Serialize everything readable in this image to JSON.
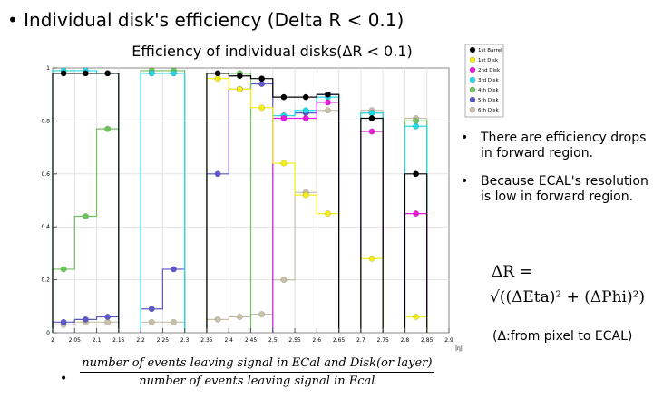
{
  "slide": {
    "title": "• Individual disk's efficiency (Delta R < 0.1)"
  },
  "notes": [
    {
      "bullet": "•",
      "text": "There are efficiency drops in forward region."
    },
    {
      "bullet": "•",
      "text": "Because ECAL's resolution is low in forward region."
    }
  ],
  "formula": {
    "lhs": "ΔR =",
    "rhs": "√((ΔEta)² + (ΔPhi)²)"
  },
  "caption": "(Δ:from pixel to ECAL)",
  "fraction": {
    "bullet": "•",
    "numerator": "number of events leaving signal in ECal and Disk(or layer)",
    "denominator": "number of events leaving signal in Ecal"
  },
  "colors": {
    "1st Barrel": "#000000",
    "1st Disk": "#f3ee1c",
    "2nd Disk": "#ea1bdc",
    "3rd Disk": "#22d9e6",
    "4th Disk": "#6cc45a",
    "5th Disk": "#5d58c6",
    "6th Disk": "#c7c1aa"
  },
  "chart_data": {
    "type": "step",
    "title": "Efficiency of individual disks(ΔR < 0.1)",
    "xlabel": "|η|",
    "ylabel": "",
    "xlim": [
      2.0,
      2.9
    ],
    "ylim": [
      0,
      1.0
    ],
    "xticks": [
      "2",
      "2.05",
      "2.1",
      "2.15",
      "2.2",
      "2.25",
      "2.3",
      "2.35",
      "2.4",
      "2.45",
      "2.5",
      "2.55",
      "2.6",
      "2.65",
      "2.7",
      "2.75",
      "2.8",
      "2.85",
      "2.9"
    ],
    "xtick_values": [
      2.0,
      2.05,
      2.1,
      2.15,
      2.2,
      2.25,
      2.3,
      2.35,
      2.4,
      2.45,
      2.5,
      2.55,
      2.6,
      2.65,
      2.7,
      2.75,
      2.8,
      2.85,
      2.9
    ],
    "yticks": [
      "0",
      "0.2",
      "0.4",
      "0.6",
      "0.8",
      "1"
    ],
    "ytick_values": [
      0,
      0.2,
      0.4,
      0.6,
      0.8,
      1.0
    ],
    "bin_width": 0.05,
    "legend_position": "top-right",
    "series": [
      {
        "name": "1st Barrel",
        "bins": [
          {
            "x": 2.025,
            "y": 0.98
          },
          {
            "x": 2.075,
            "y": 0.98
          },
          {
            "x": 2.125,
            "y": 0.98
          },
          {
            "x": 2.375,
            "y": 0.98
          },
          {
            "x": 2.425,
            "y": 0.97
          },
          {
            "x": 2.475,
            "y": 0.96
          },
          {
            "x": 2.525,
            "y": 0.89
          },
          {
            "x": 2.575,
            "y": 0.89
          },
          {
            "x": 2.625,
            "y": 0.9
          },
          {
            "x": 2.725,
            "y": 0.81
          },
          {
            "x": 2.825,
            "y": 0.6
          }
        ]
      },
      {
        "name": "1st Disk",
        "bins": [
          {
            "x": 2.375,
            "y": 0.96
          },
          {
            "x": 2.425,
            "y": 0.92
          },
          {
            "x": 2.475,
            "y": 0.85
          },
          {
            "x": 2.525,
            "y": 0.64
          },
          {
            "x": 2.575,
            "y": 0.52
          },
          {
            "x": 2.625,
            "y": 0.45
          },
          {
            "x": 2.725,
            "y": 0.28
          },
          {
            "x": 2.825,
            "y": 0.06
          }
        ]
      },
      {
        "name": "2nd Disk",
        "bins": [
          {
            "x": 2.525,
            "y": 0.81
          },
          {
            "x": 2.575,
            "y": 0.81
          },
          {
            "x": 2.625,
            "y": 0.87
          },
          {
            "x": 2.725,
            "y": 0.76
          },
          {
            "x": 2.825,
            "y": 0.45
          }
        ]
      },
      {
        "name": "3rd Disk",
        "bins": [
          {
            "x": 2.025,
            "y": 0.99
          },
          {
            "x": 2.075,
            "y": 0.99
          },
          {
            "x": 2.125,
            "y": 0.98
          },
          {
            "x": 2.225,
            "y": 0.98
          },
          {
            "x": 2.275,
            "y": 0.98
          },
          {
            "x": 2.525,
            "y": 0.82
          },
          {
            "x": 2.575,
            "y": 0.84
          },
          {
            "x": 2.625,
            "y": 0.89
          },
          {
            "x": 2.725,
            "y": 0.83
          },
          {
            "x": 2.825,
            "y": 0.78
          }
        ]
      },
      {
        "name": "4th Disk",
        "bins": [
          {
            "x": 2.025,
            "y": 0.24
          },
          {
            "x": 2.075,
            "y": 0.44
          },
          {
            "x": 2.125,
            "y": 0.77
          },
          {
            "x": 2.225,
            "y": 0.99
          },
          {
            "x": 2.275,
            "y": 0.99
          },
          {
            "x": 2.375,
            "y": 0.98
          },
          {
            "x": 2.425,
            "y": 0.98
          },
          {
            "x": 2.725,
            "y": 0.83
          },
          {
            "x": 2.825,
            "y": 0.8
          }
        ]
      },
      {
        "name": "5th Disk",
        "bins": [
          {
            "x": 2.025,
            "y": 0.04
          },
          {
            "x": 2.075,
            "y": 0.05
          },
          {
            "x": 2.125,
            "y": 0.06
          },
          {
            "x": 2.225,
            "y": 0.09
          },
          {
            "x": 2.275,
            "y": 0.24
          },
          {
            "x": 2.375,
            "y": 0.6
          },
          {
            "x": 2.425,
            "y": 0.92
          },
          {
            "x": 2.475,
            "y": 0.94
          },
          {
            "x": 2.525,
            "y": 0.82
          },
          {
            "x": 2.575,
            "y": 0.83
          },
          {
            "x": 2.625,
            "y": 0.9
          }
        ]
      },
      {
        "name": "6th Disk",
        "bins": [
          {
            "x": 2.025,
            "y": 0.03
          },
          {
            "x": 2.075,
            "y": 0.04
          },
          {
            "x": 2.125,
            "y": 0.04
          },
          {
            "x": 2.225,
            "y": 0.04
          },
          {
            "x": 2.275,
            "y": 0.04
          },
          {
            "x": 2.375,
            "y": 0.05
          },
          {
            "x": 2.425,
            "y": 0.06
          },
          {
            "x": 2.475,
            "y": 0.07
          },
          {
            "x": 2.525,
            "y": 0.2
          },
          {
            "x": 2.575,
            "y": 0.53
          },
          {
            "x": 2.625,
            "y": 0.84
          },
          {
            "x": 2.725,
            "y": 0.84
          },
          {
            "x": 2.825,
            "y": 0.81
          }
        ]
      }
    ]
  }
}
